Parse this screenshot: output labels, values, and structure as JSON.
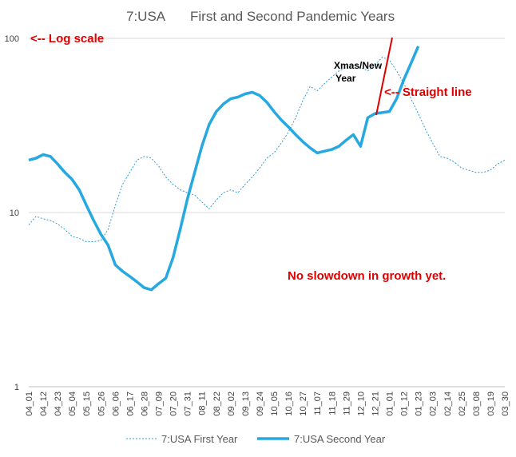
{
  "chart_data": {
    "type": "line",
    "title_left": "7:USA",
    "title_right": "First and Second Pandemic Years",
    "y_scale": "log",
    "ylim": [
      1,
      100
    ],
    "y_ticks": [
      "1",
      "10",
      "100"
    ],
    "x_tick_labels": [
      "04_01",
      "04_12",
      "04_23",
      "05_04",
      "05_15",
      "05_26",
      "06_06",
      "06_17",
      "06_28",
      "07_09",
      "07_20",
      "07_31",
      "08_11",
      "08_22",
      "09_02",
      "09_13",
      "09_24",
      "10_05",
      "10_16",
      "10_27",
      "11_07",
      "11_18",
      "11_29",
      "12_10",
      "12_21",
      "01_01",
      "01_12",
      "01_23",
      "02_03",
      "02_14",
      "02_25",
      "03_08",
      "03_19",
      "03_30"
    ],
    "grid": "horizontal",
    "legend_position": "bottom",
    "series": [
      {
        "name": "7:USA First Year",
        "style": "dotted-thin",
        "color": "#2e9bd6",
        "points": [
          [
            0,
            8.5
          ],
          [
            1,
            9.5
          ],
          [
            2,
            9.2
          ],
          [
            3,
            9.0
          ],
          [
            4,
            8.6
          ],
          [
            5,
            8.0
          ],
          [
            6,
            7.3
          ],
          [
            7,
            7.1
          ],
          [
            8,
            6.8
          ],
          [
            9,
            6.8
          ],
          [
            10,
            6.9
          ],
          [
            11,
            8.0
          ],
          [
            12,
            11.0
          ],
          [
            13,
            14.5
          ],
          [
            14,
            17.0
          ],
          [
            15,
            20.0
          ],
          [
            16,
            21.0
          ],
          [
            17,
            20.5
          ],
          [
            18,
            18.5
          ],
          [
            19,
            16.0
          ],
          [
            20,
            14.5
          ],
          [
            21,
            13.5
          ],
          [
            22,
            13.0
          ],
          [
            23,
            12.6
          ],
          [
            24,
            11.5
          ],
          [
            25,
            10.5
          ],
          [
            26,
            11.8
          ],
          [
            27,
            13.0
          ],
          [
            28,
            13.5
          ],
          [
            29,
            13.0
          ],
          [
            30,
            14.5
          ],
          [
            31,
            16.0
          ],
          [
            32,
            18.0
          ],
          [
            33,
            20.5
          ],
          [
            34,
            22.0
          ],
          [
            35,
            25.0
          ],
          [
            36,
            29.0
          ],
          [
            37,
            35.0
          ],
          [
            38,
            44.0
          ],
          [
            39,
            53.0
          ],
          [
            40,
            50.0
          ],
          [
            41,
            55.0
          ],
          [
            42,
            60.0
          ],
          [
            43,
            65.0
          ],
          [
            44,
            68.0
          ],
          [
            45,
            70.0
          ],
          [
            46,
            68.0
          ],
          [
            47,
            65.0
          ],
          [
            48,
            70.0
          ],
          [
            49,
            78.0
          ],
          [
            50,
            75.0
          ],
          [
            51,
            65.0
          ],
          [
            52,
            55.0
          ],
          [
            53,
            45.0
          ],
          [
            54,
            37.0
          ],
          [
            55,
            30.0
          ],
          [
            56,
            25.0
          ],
          [
            57,
            21.0
          ],
          [
            58,
            20.5
          ],
          [
            59,
            19.5
          ],
          [
            60,
            18.0
          ],
          [
            61,
            17.5
          ],
          [
            62,
            17.0
          ],
          [
            63,
            17.0
          ],
          [
            64,
            17.5
          ],
          [
            65,
            19.0
          ],
          [
            66,
            20.0
          ]
        ]
      },
      {
        "name": "7:USA Second Year",
        "style": "solid-thick",
        "color": "#26a8e0",
        "points": [
          [
            0,
            20.0
          ],
          [
            1,
            20.5
          ],
          [
            2,
            21.5
          ],
          [
            3,
            21.0
          ],
          [
            4,
            19.0
          ],
          [
            5,
            17.0
          ],
          [
            6,
            15.5
          ],
          [
            7,
            13.5
          ],
          [
            8,
            11.0
          ],
          [
            9,
            9.0
          ],
          [
            10,
            7.5
          ],
          [
            11,
            6.5
          ],
          [
            12,
            5.0
          ],
          [
            13,
            4.6
          ],
          [
            14,
            4.3
          ],
          [
            15,
            4.0
          ],
          [
            16,
            3.7
          ],
          [
            17,
            3.6
          ],
          [
            18,
            3.9
          ],
          [
            19,
            4.2
          ],
          [
            20,
            5.5
          ],
          [
            21,
            8.0
          ],
          [
            22,
            12.0
          ],
          [
            23,
            17.0
          ],
          [
            24,
            24.0
          ],
          [
            25,
            32.0
          ],
          [
            26,
            38.0
          ],
          [
            27,
            42.0
          ],
          [
            28,
            45.0
          ],
          [
            29,
            46.0
          ],
          [
            30,
            48.0
          ],
          [
            31,
            49.0
          ],
          [
            32,
            47.0
          ],
          [
            33,
            43.0
          ],
          [
            34,
            38.0
          ],
          [
            35,
            34.0
          ],
          [
            36,
            31.0
          ],
          [
            37,
            28.0
          ],
          [
            38,
            25.5
          ],
          [
            39,
            23.5
          ],
          [
            40,
            22.0
          ],
          [
            41,
            22.5
          ],
          [
            42,
            23.0
          ],
          [
            43,
            24.0
          ],
          [
            44,
            26.0
          ],
          [
            45,
            28.0
          ],
          [
            46,
            24.0
          ],
          [
            47,
            35.0
          ],
          [
            48,
            37.0
          ],
          [
            49,
            37.5
          ],
          [
            50,
            38.0
          ],
          [
            51,
            45.0
          ],
          [
            52,
            58.0
          ],
          [
            53,
            72.0
          ],
          [
            54,
            90.0
          ]
        ]
      }
    ],
    "annotations": [
      {
        "text": "<-- Log scale",
        "color": "red"
      },
      {
        "text": "Xmas/New",
        "color": "black"
      },
      {
        "text": "Year",
        "color": "black"
      },
      {
        "text": "<-- Straight line",
        "color": "red"
      },
      {
        "text": "No slowdown in growth yet.",
        "color": "red"
      }
    ]
  }
}
